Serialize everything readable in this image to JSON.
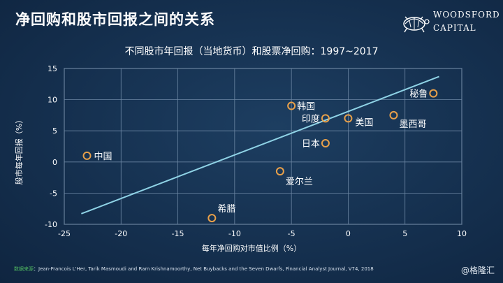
{
  "header": {
    "title": "净回购和股市回报之间的关系",
    "logo_line1": "WOODSFORD",
    "logo_line2": "CAPITAL"
  },
  "chart_data": {
    "type": "scatter",
    "title": "不同股市年回报（当地货币）和股票净回购：1997~2017",
    "xlabel": "每年净回购对市值比例（%）",
    "ylabel": "股市每年回报（%）",
    "xlim": [
      -25,
      10
    ],
    "ylim": [
      -10,
      15
    ],
    "xticks": [
      -25,
      -20,
      -15,
      -10,
      -5,
      0,
      5,
      10
    ],
    "yticks": [
      -10,
      -5,
      0,
      5,
      10,
      15
    ],
    "grid": true,
    "points": [
      {
        "label": "中国",
        "x": -23,
        "y": 1
      },
      {
        "label": "希腊",
        "x": -12,
        "y": -9
      },
      {
        "label": "爱尔兰",
        "x": -6,
        "y": -1.5
      },
      {
        "label": "韩国",
        "x": -5,
        "y": 9
      },
      {
        "label": "印度",
        "x": -2,
        "y": 7
      },
      {
        "label": "日本",
        "x": -2,
        "y": 3
      },
      {
        "label": "美国",
        "x": 0,
        "y": 7
      },
      {
        "label": "墨西哥",
        "x": 4,
        "y": 7.5
      },
      {
        "label": "秘鲁",
        "x": 7.5,
        "y": 11
      }
    ],
    "trendline": {
      "x": [
        -23.5,
        8
      ],
      "y": [
        -8.3,
        13.7
      ]
    },
    "colors": {
      "point": "#e8a04a",
      "trendline": "#8fd3e6",
      "grid": "#6c86a3",
      "axis": "#9fb3c8"
    }
  },
  "footer": {
    "source_label": "数据来源",
    "source_text": "：Jean-Francois L'Her, Tarik Masmoudi and Ram Krishnamoorthy, Net Buybacks and the Seven Dwarfs, Financial Analyst Journal, V74, 2018",
    "watermark": "@格隆汇"
  }
}
